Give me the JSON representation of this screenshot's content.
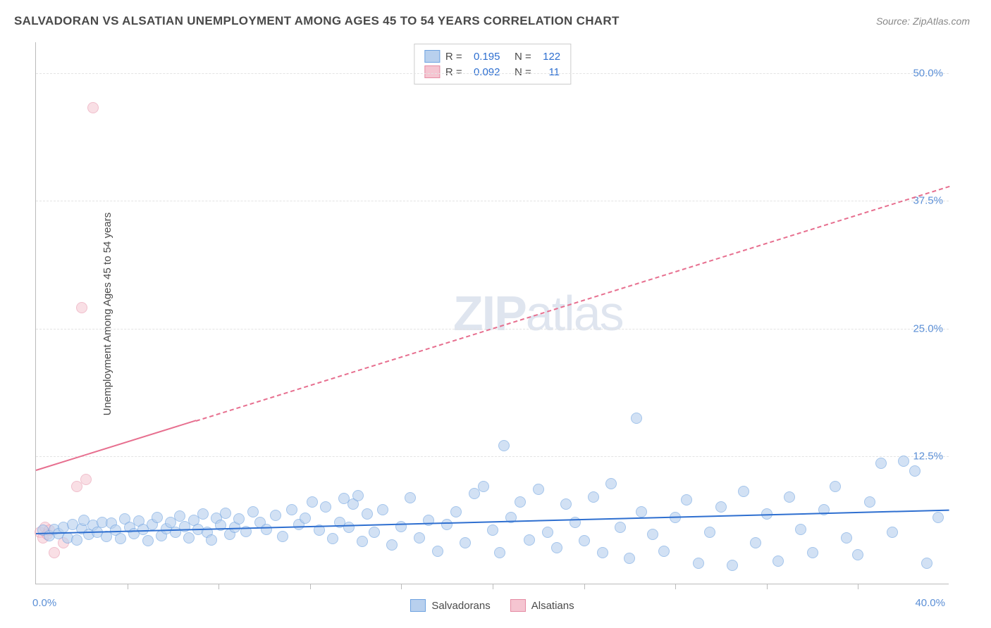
{
  "title": "SALVADORAN VS ALSATIAN UNEMPLOYMENT AMONG AGES 45 TO 54 YEARS CORRELATION CHART",
  "source": "Source: ZipAtlas.com",
  "y_axis_label": "Unemployment Among Ages 45 to 54 years",
  "watermark_zip": "ZIP",
  "watermark_atlas": "atlas",
  "chart": {
    "type": "scatter",
    "background_color": "#ffffff",
    "grid_color": "#e3e3e3",
    "axis_color": "#bbbbbb",
    "tick_label_color": "#5b8fd6",
    "title_color": "#4a4a4a",
    "title_fontsize": 17,
    "label_fontsize": 15,
    "xlim": [
      0,
      40
    ],
    "ylim": [
      0,
      53
    ],
    "y_ticks": [
      12.5,
      25.0,
      37.5,
      50.0
    ],
    "y_tick_labels": [
      "12.5%",
      "25.0%",
      "37.5%",
      "50.0%"
    ],
    "x_tick_positions": [
      4,
      8,
      12,
      16,
      20,
      24,
      28,
      32,
      36
    ],
    "x_min_label": "0.0%",
    "x_max_label": "40.0%",
    "point_radius": 8,
    "series": [
      {
        "name": "Salvadorans",
        "fill": "#b8d0ee",
        "stroke": "#6ea2e0",
        "fill_opacity": 0.62,
        "R": "0.195",
        "N": "122",
        "trend": {
          "color": "#2e6fd0",
          "y_start": 5.0,
          "y_end": 7.3,
          "x_start": 0,
          "x_end": 40,
          "solid_until_x": 40
        },
        "points": [
          [
            0.3,
            5.2
          ],
          [
            0.6,
            4.7
          ],
          [
            0.8,
            5.3
          ],
          [
            1.0,
            4.9
          ],
          [
            1.2,
            5.5
          ],
          [
            1.4,
            4.5
          ],
          [
            1.6,
            5.8
          ],
          [
            1.8,
            4.3
          ],
          [
            2.0,
            5.4
          ],
          [
            2.1,
            6.2
          ],
          [
            2.3,
            4.8
          ],
          [
            2.5,
            5.7
          ],
          [
            2.7,
            5.0
          ],
          [
            2.9,
            6.0
          ],
          [
            3.1,
            4.6
          ],
          [
            3.3,
            5.9
          ],
          [
            3.5,
            5.2
          ],
          [
            3.7,
            4.4
          ],
          [
            3.9,
            6.3
          ],
          [
            4.1,
            5.5
          ],
          [
            4.3,
            4.9
          ],
          [
            4.5,
            6.1
          ],
          [
            4.7,
            5.3
          ],
          [
            4.9,
            4.2
          ],
          [
            5.1,
            5.8
          ],
          [
            5.3,
            6.5
          ],
          [
            5.5,
            4.7
          ],
          [
            5.7,
            5.4
          ],
          [
            5.9,
            6.0
          ],
          [
            6.1,
            5.0
          ],
          [
            6.3,
            6.6
          ],
          [
            6.5,
            5.6
          ],
          [
            6.7,
            4.5
          ],
          [
            6.9,
            6.2
          ],
          [
            7.1,
            5.3
          ],
          [
            7.3,
            6.8
          ],
          [
            7.5,
            5.0
          ],
          [
            7.7,
            4.3
          ],
          [
            7.9,
            6.4
          ],
          [
            8.1,
            5.7
          ],
          [
            8.3,
            6.9
          ],
          [
            8.5,
            4.8
          ],
          [
            8.7,
            5.5
          ],
          [
            8.9,
            6.3
          ],
          [
            9.2,
            5.1
          ],
          [
            9.5,
            7.0
          ],
          [
            9.8,
            6.0
          ],
          [
            10.1,
            5.3
          ],
          [
            10.5,
            6.7
          ],
          [
            10.8,
            4.6
          ],
          [
            11.2,
            7.2
          ],
          [
            11.5,
            5.8
          ],
          [
            11.8,
            6.4
          ],
          [
            12.1,
            8.0
          ],
          [
            12.4,
            5.2
          ],
          [
            12.7,
            7.5
          ],
          [
            13.0,
            4.4
          ],
          [
            13.3,
            6.0
          ],
          [
            13.5,
            8.3
          ],
          [
            13.7,
            5.5
          ],
          [
            13.9,
            7.8
          ],
          [
            14.1,
            8.6
          ],
          [
            14.3,
            4.1
          ],
          [
            14.5,
            6.8
          ],
          [
            14.8,
            5.0
          ],
          [
            15.2,
            7.2
          ],
          [
            15.6,
            3.8
          ],
          [
            16.0,
            5.6
          ],
          [
            16.4,
            8.4
          ],
          [
            16.8,
            4.5
          ],
          [
            17.2,
            6.2
          ],
          [
            17.6,
            3.2
          ],
          [
            18.0,
            5.8
          ],
          [
            18.4,
            7.0
          ],
          [
            18.8,
            4.0
          ],
          [
            19.2,
            8.8
          ],
          [
            19.6,
            9.5
          ],
          [
            20.0,
            5.2
          ],
          [
            20.3,
            3.0
          ],
          [
            20.5,
            13.5
          ],
          [
            20.8,
            6.5
          ],
          [
            21.2,
            8.0
          ],
          [
            21.6,
            4.3
          ],
          [
            22.0,
            9.2
          ],
          [
            22.4,
            5.0
          ],
          [
            22.8,
            3.5
          ],
          [
            23.2,
            7.8
          ],
          [
            23.6,
            6.0
          ],
          [
            24.0,
            4.2
          ],
          [
            24.4,
            8.5
          ],
          [
            24.8,
            3.0
          ],
          [
            25.2,
            9.8
          ],
          [
            25.6,
            5.5
          ],
          [
            26.0,
            2.5
          ],
          [
            26.3,
            16.2
          ],
          [
            26.5,
            7.0
          ],
          [
            27.0,
            4.8
          ],
          [
            27.5,
            3.2
          ],
          [
            28.0,
            6.5
          ],
          [
            28.5,
            8.2
          ],
          [
            29.0,
            2.0
          ],
          [
            29.5,
            5.0
          ],
          [
            30.0,
            7.5
          ],
          [
            30.5,
            1.8
          ],
          [
            31.0,
            9.0
          ],
          [
            31.5,
            4.0
          ],
          [
            32.0,
            6.8
          ],
          [
            32.5,
            2.2
          ],
          [
            33.0,
            8.5
          ],
          [
            33.5,
            5.3
          ],
          [
            34.0,
            3.0
          ],
          [
            34.5,
            7.2
          ],
          [
            35.0,
            9.5
          ],
          [
            35.5,
            4.5
          ],
          [
            36.0,
            2.8
          ],
          [
            36.5,
            8.0
          ],
          [
            37.0,
            11.8
          ],
          [
            37.5,
            5.0
          ],
          [
            38.0,
            12.0
          ],
          [
            38.5,
            11.0
          ],
          [
            39.0,
            2.0
          ],
          [
            39.5,
            6.5
          ]
        ]
      },
      {
        "name": "Alsatians",
        "fill": "#f5c5d1",
        "stroke": "#e58ba3",
        "fill_opacity": 0.55,
        "R": "0.092",
        "N": "  11",
        "trend": {
          "color": "#e76f8f",
          "y_start": 11.2,
          "y_end": 39.0,
          "x_start": 0,
          "x_end": 40,
          "solid_until_x": 7.0
        },
        "points": [
          [
            0.2,
            5.0
          ],
          [
            0.3,
            4.5
          ],
          [
            0.4,
            5.5
          ],
          [
            0.5,
            4.8
          ],
          [
            0.6,
            5.2
          ],
          [
            0.8,
            3.0
          ],
          [
            1.2,
            4.0
          ],
          [
            1.8,
            9.5
          ],
          [
            2.2,
            10.2
          ],
          [
            2.0,
            27.0
          ],
          [
            2.5,
            46.5
          ]
        ]
      }
    ]
  }
}
